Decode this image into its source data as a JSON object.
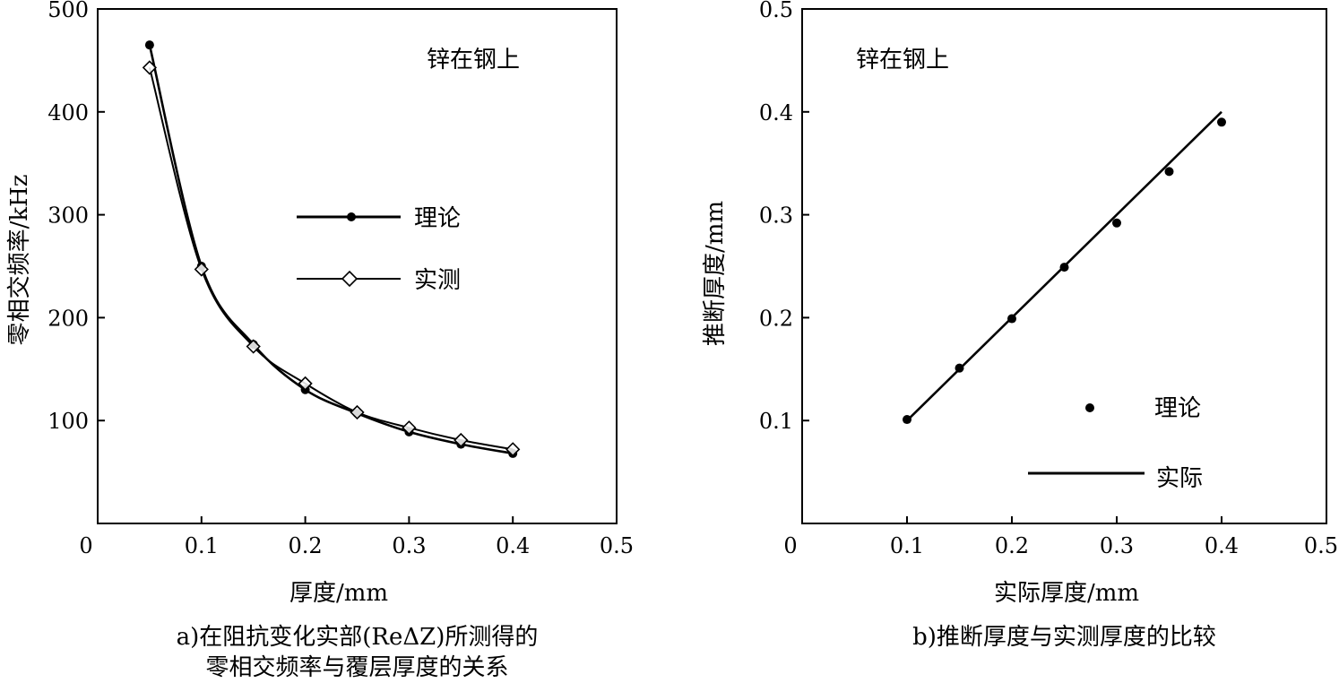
{
  "chart_data": [
    {
      "type": "line",
      "title": "",
      "xlabel": "厚度/mm",
      "ylabel": "零相交频率/kHz",
      "xlim": [
        0,
        0.5
      ],
      "ylim": [
        0,
        500
      ],
      "x_ticks": [
        "0",
        "0.1",
        "0.2",
        "0.3",
        "0.4",
        "0.5"
      ],
      "y_ticks": [
        "500",
        "400",
        "300",
        "200",
        "100"
      ],
      "grid": false,
      "annotation": "锌在钢上",
      "legend_position": "center-right",
      "caption_line1": "a)在阻抗变化实部(ReΔZ)所测得的",
      "caption_line2": "零相交频率与覆层厚度的关系",
      "series": [
        {
          "name": "理论",
          "marker": "filled-circle",
          "x": [
            0.05,
            0.1,
            0.15,
            0.2,
            0.25,
            0.3,
            0.35,
            0.4
          ],
          "y": [
            465,
            250,
            174,
            130,
            107,
            89,
            77,
            68
          ]
        },
        {
          "name": "实测",
          "marker": "open-diamond",
          "x": [
            0.05,
            0.1,
            0.15,
            0.2,
            0.25,
            0.3,
            0.35,
            0.4
          ],
          "y": [
            443,
            247,
            172,
            136,
            108,
            93,
            81,
            72
          ]
        }
      ]
    },
    {
      "type": "scatter",
      "title": "",
      "xlabel": "实际厚度/mm",
      "ylabel": "推断厚度/mm",
      "xlim": [
        0,
        0.5
      ],
      "ylim": [
        0,
        0.5
      ],
      "x_ticks": [
        "0",
        "0.1",
        "0.2",
        "0.3",
        "0.4",
        "0.5"
      ],
      "y_ticks": [
        "0.5",
        "0.4",
        "0.3",
        "0.2",
        "0.1"
      ],
      "grid": false,
      "annotation": "锌在钢上",
      "legend_position": "lower-right",
      "caption": "b)推断厚度与实测厚度的比较",
      "series": [
        {
          "name": "理论",
          "marker": "filled-circle",
          "x": [
            0.1,
            0.15,
            0.2,
            0.25,
            0.3,
            0.35,
            0.4
          ],
          "y": [
            0.101,
            0.151,
            0.199,
            0.249,
            0.292,
            0.342,
            0.39
          ]
        },
        {
          "name": "实际",
          "marker": "line",
          "x": [
            0.1,
            0.4
          ],
          "y": [
            0.1,
            0.4
          ]
        }
      ]
    }
  ]
}
